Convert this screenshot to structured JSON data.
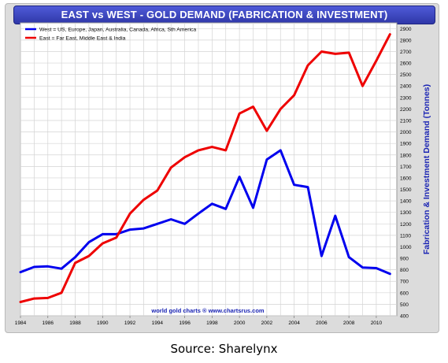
{
  "caption": "Source: Sharelynx",
  "chart_data": {
    "type": "line",
    "title": "EAST vs WEST - GOLD DEMAND (FABRICATION & INVESTMENT)",
    "ylabel": "Fabrication & Investment Demand (Tonnes)",
    "watermark": "world gold charts ® www.chartsrus.com",
    "xlim": [
      1984,
      2011.5
    ],
    "ylim": [
      400,
      2950
    ],
    "x_ticks": [
      "1984",
      "1986",
      "1988",
      "1990",
      "1992",
      "1994",
      "1996",
      "1998",
      "2000",
      "2002",
      "2004",
      "2006",
      "2008",
      "2010"
    ],
    "y_ticks": [
      "400",
      "500",
      "600",
      "700",
      "800",
      "900",
      "1000",
      "1100",
      "1200",
      "1300",
      "1400",
      "1500",
      "1600",
      "1700",
      "1800",
      "1900",
      "2000",
      "2100",
      "2200",
      "2300",
      "2400",
      "2500",
      "2600",
      "2700",
      "2800",
      "2900"
    ],
    "grid": true,
    "legend_position": "top-left",
    "x": [
      1984,
      1985,
      1986,
      1987,
      1988,
      1989,
      1990,
      1991,
      1992,
      1993,
      1994,
      1995,
      1996,
      1997,
      1998,
      1999,
      2000,
      2001,
      2002,
      2003,
      2004,
      2005,
      2006,
      2007,
      2008,
      2009,
      2010,
      2011
    ],
    "series": [
      {
        "name": "West = US, Europe, Japan, Australia, Canada, Africa, Sth America",
        "color": "#0000ee",
        "values": [
          780,
          825,
          830,
          810,
          910,
          1040,
          1110,
          1110,
          1150,
          1160,
          1200,
          1240,
          1200,
          1290,
          1375,
          1330,
          1610,
          1340,
          1760,
          1840,
          1540,
          1520,
          920,
          1270,
          910,
          820,
          815,
          765
        ]
      },
      {
        "name": "East = Far East, Middle East & India",
        "color": "#ee0000",
        "values": [
          520,
          550,
          555,
          600,
          860,
          920,
          1030,
          1080,
          1290,
          1410,
          1490,
          1690,
          1780,
          1840,
          1870,
          1840,
          2160,
          2220,
          2010,
          2200,
          2320,
          2580,
          2700,
          2680,
          2690,
          2400,
          2620,
          2850
        ]
      }
    ]
  }
}
